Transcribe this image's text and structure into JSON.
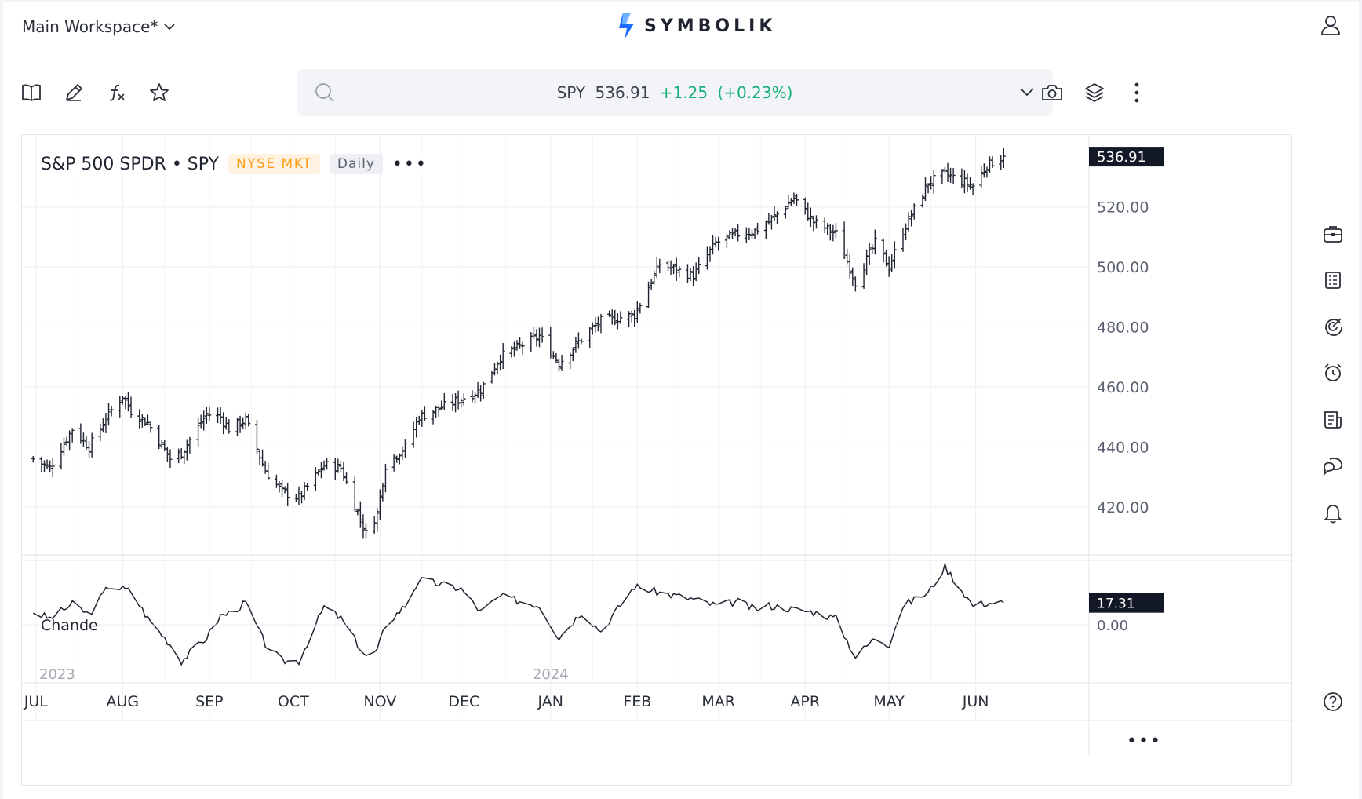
{
  "header": {
    "workspace": "Main Workspace*",
    "brand": "SYMBOLIK"
  },
  "toolbar": {
    "left_icons": [
      "book-icon",
      "pencil-icon",
      "function-icon",
      "star-icon"
    ],
    "right_icons": [
      "camera-icon",
      "layers-icon",
      "more-vertical-icon"
    ]
  },
  "search": {
    "symbol": "SPY",
    "price": "536.91",
    "change": "+1.25",
    "change_pct": "(+0.23%)"
  },
  "legend": {
    "title": "S&P 500 SPDR • SPY",
    "exchange": "NYSE MKT",
    "interval": "Daily",
    "more": "•••"
  },
  "indicator": {
    "name": "Chande",
    "last_value": "17.31",
    "axis_label": "0.00"
  },
  "colors": {
    "accent": "#1e6bff",
    "positive": "#18b07a",
    "exchange_badge": "#ff9e1b",
    "bar": "#1f2430"
  },
  "rail_icons": [
    "briefcase-icon",
    "list-icon",
    "target-icon",
    "alarm-clock-icon",
    "news-icon",
    "chat-icon",
    "bell-icon",
    "help-icon"
  ],
  "chart_data": {
    "type": "ohlc",
    "y_ticks": [
      "420.00",
      "440.00",
      "460.00",
      "480.00",
      "500.00",
      "520.00"
    ],
    "last_price_label": "536.91",
    "x_month_labels": [
      "JUL",
      "AUG",
      "SEP",
      "OCT",
      "NOV",
      "DEC",
      "JAN",
      "FEB",
      "MAR",
      "APR",
      "MAY",
      "JUN"
    ],
    "year_labels": [
      "2023",
      "2024"
    ],
    "ylim": [
      404,
      544
    ],
    "price_keypoints": [
      [
        "2023-06-30",
        436
      ],
      [
        "2023-07-06",
        433
      ],
      [
        "2023-07-14",
        446
      ],
      [
        "2023-07-20",
        440
      ],
      [
        "2023-07-27",
        451
      ],
      [
        "2023-08-01",
        457
      ],
      [
        "2023-08-04",
        452
      ],
      [
        "2023-08-10",
        448
      ],
      [
        "2023-08-18",
        436
      ],
      [
        "2023-08-22",
        438
      ],
      [
        "2023-08-31",
        451
      ],
      [
        "2023-09-05",
        450
      ],
      [
        "2023-09-08",
        446
      ],
      [
        "2023-09-14",
        449
      ],
      [
        "2023-09-21",
        432
      ],
      [
        "2023-09-27",
        425
      ],
      [
        "2023-10-03",
        423
      ],
      [
        "2023-10-12",
        434
      ],
      [
        "2023-10-18",
        433
      ],
      [
        "2023-10-27",
        411
      ],
      [
        "2023-10-31",
        418
      ],
      [
        "2023-11-03",
        434
      ],
      [
        "2023-11-10",
        440
      ],
      [
        "2023-11-15",
        450
      ],
      [
        "2023-11-30",
        456
      ],
      [
        "2023-12-07",
        459
      ],
      [
        "2023-12-14",
        470
      ],
      [
        "2023-12-28",
        477
      ],
      [
        "2024-01-04",
        468
      ],
      [
        "2024-01-12",
        476
      ],
      [
        "2024-01-19",
        482
      ],
      [
        "2024-01-31",
        484
      ],
      [
        "2024-02-09",
        501
      ],
      [
        "2024-02-21",
        497
      ],
      [
        "2024-02-29",
        508
      ],
      [
        "2024-03-08",
        511
      ],
      [
        "2024-03-14",
        512
      ],
      [
        "2024-03-19",
        515
      ],
      [
        "2024-03-28",
        523
      ],
      [
        "2024-04-04",
        515
      ],
      [
        "2024-04-12",
        511
      ],
      [
        "2024-04-19",
        495
      ],
      [
        "2024-04-26",
        508
      ],
      [
        "2024-05-01",
        500
      ],
      [
        "2024-05-06",
        512
      ],
      [
        "2024-05-15",
        528
      ],
      [
        "2024-05-21",
        531
      ],
      [
        "2024-05-31",
        527
      ],
      [
        "2024-06-05",
        534
      ],
      [
        "2024-06-11",
        536.91
      ]
    ],
    "indicator": {
      "name": "Chande",
      "ylim": [
        -45,
        50
      ],
      "keypoints": [
        [
          "2023-06-30",
          10
        ],
        [
          "2023-07-06",
          5
        ],
        [
          "2023-07-14",
          16
        ],
        [
          "2023-07-20",
          8
        ],
        [
          "2023-07-27",
          30
        ],
        [
          "2023-08-01",
          28
        ],
        [
          "2023-08-04",
          26
        ],
        [
          "2023-08-10",
          5
        ],
        [
          "2023-08-18",
          -15
        ],
        [
          "2023-08-22",
          -28
        ],
        [
          "2023-08-31",
          -10
        ],
        [
          "2023-09-05",
          7
        ],
        [
          "2023-09-08",
          9
        ],
        [
          "2023-09-14",
          17
        ],
        [
          "2023-09-21",
          -15
        ],
        [
          "2023-09-27",
          -28
        ],
        [
          "2023-10-03",
          -28
        ],
        [
          "2023-10-12",
          14
        ],
        [
          "2023-10-18",
          5
        ],
        [
          "2023-10-27",
          -25
        ],
        [
          "2023-10-31",
          -20
        ],
        [
          "2023-11-03",
          0
        ],
        [
          "2023-11-10",
          15
        ],
        [
          "2023-11-15",
          35
        ],
        [
          "2023-11-30",
          28
        ],
        [
          "2023-12-07",
          10
        ],
        [
          "2023-12-14",
          22
        ],
        [
          "2023-12-28",
          15
        ],
        [
          "2024-01-04",
          -10
        ],
        [
          "2024-01-12",
          10
        ],
        [
          "2024-01-19",
          -5
        ],
        [
          "2024-01-31",
          30
        ],
        [
          "2024-02-09",
          25
        ],
        [
          "2024-02-21",
          20
        ],
        [
          "2024-02-29",
          15
        ],
        [
          "2024-03-08",
          18
        ],
        [
          "2024-03-14",
          12
        ],
        [
          "2024-03-19",
          15
        ],
        [
          "2024-03-28",
          12
        ],
        [
          "2024-04-04",
          10
        ],
        [
          "2024-04-12",
          5
        ],
        [
          "2024-04-19",
          -25
        ],
        [
          "2024-04-26",
          -10
        ],
        [
          "2024-05-01",
          -15
        ],
        [
          "2024-05-06",
          15
        ],
        [
          "2024-05-15",
          25
        ],
        [
          "2024-05-21",
          45
        ],
        [
          "2024-05-31",
          15
        ],
        [
          "2024-06-05",
          17
        ],
        [
          "2024-06-11",
          17.31
        ]
      ]
    }
  }
}
